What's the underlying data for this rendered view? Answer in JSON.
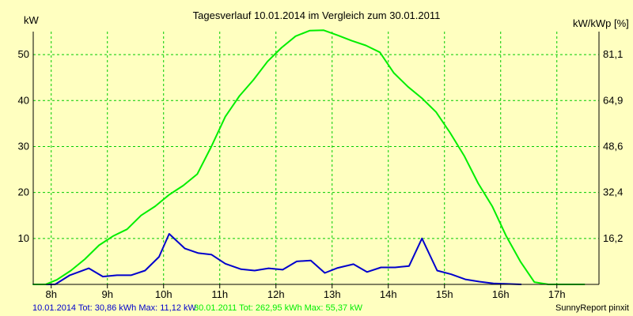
{
  "chart_data": {
    "type": "line",
    "title": "Tagesverlauf 10.01.2014 im Vergleich zum 30.01.2011",
    "ylabel_left": "kW",
    "ylabel_right": "kW/kWp [%]",
    "x_unit": "hour",
    "xlim": [
      7.68,
      17.75
    ],
    "ylim": [
      0,
      55
    ],
    "x_ticks": [
      {
        "value": 8,
        "label": "8h"
      },
      {
        "value": 9,
        "label": "9h"
      },
      {
        "value": 10,
        "label": "10h"
      },
      {
        "value": 11,
        "label": "11h"
      },
      {
        "value": 12,
        "label": "12h"
      },
      {
        "value": 13,
        "label": "13h"
      },
      {
        "value": 14,
        "label": "14h"
      },
      {
        "value": 15,
        "label": "15h"
      },
      {
        "value": 16,
        "label": "16h"
      },
      {
        "value": 17,
        "label": "17h"
      }
    ],
    "y_ticks_left": [
      10,
      20,
      30,
      40,
      50
    ],
    "y_ticks_right": [
      "16,2",
      "32,4",
      "48,6",
      "64,9",
      "81,1"
    ],
    "grid": true,
    "colors": {
      "background": "#ffffc0",
      "grid": "#00cc00",
      "axis": "#000000",
      "series_2014": "#0000cc",
      "series_2011": "#00ee00"
    },
    "legend": [
      {
        "text": "10.01.2014 Tot: 30,86 kWh Max: 11,12 kW",
        "color": "#0000cc"
      },
      {
        "text": "30.01.2011 Tot: 262,95 kWh Max: 55,37 kW",
        "color": "#00ee00"
      }
    ],
    "credit": "SunnyReport pinxit",
    "series": [
      {
        "color": "#0000cc",
        "x": [
          7.67,
          8.07,
          8.33,
          8.67,
          8.92,
          9.17,
          9.42,
          9.67,
          9.92,
          10.1,
          10.38,
          10.62,
          10.85,
          11.1,
          11.38,
          11.62,
          11.87,
          12.12,
          12.37,
          12.62,
          12.87,
          13.1,
          13.38,
          13.62,
          13.87,
          14.12,
          14.37,
          14.6,
          14.87,
          15.12,
          15.37,
          15.62,
          15.87,
          16.12,
          16.37
        ],
        "y": [
          0,
          0,
          2,
          3.5,
          1.7,
          2,
          2,
          3,
          6,
          11,
          7.8,
          6.8,
          6.5,
          4.5,
          3.3,
          3,
          3.5,
          3.2,
          5,
          5.2,
          2.5,
          3.6,
          4.4,
          2.7,
          3.7,
          3.7,
          4,
          10,
          3,
          2.2,
          1.1,
          0.6,
          0.2,
          0.1,
          0
        ]
      },
      {
        "color": "#00ee00",
        "x": [
          7.67,
          7.9,
          8.1,
          8.35,
          8.6,
          8.85,
          9.1,
          9.35,
          9.6,
          9.85,
          10.1,
          10.35,
          10.6,
          10.85,
          11.1,
          11.35,
          11.6,
          11.85,
          12.1,
          12.35,
          12.6,
          12.85,
          13.1,
          13.35,
          13.6,
          13.85,
          14.1,
          14.35,
          14.6,
          14.85,
          15.1,
          15.35,
          15.6,
          15.85,
          16.1,
          16.35,
          16.6,
          16.85,
          17.1,
          17.5
        ],
        "y": [
          0,
          0,
          1,
          3,
          5.5,
          8.5,
          10.5,
          12,
          15,
          17,
          19.5,
          21.5,
          24,
          30,
          36.5,
          41,
          44.5,
          48.5,
          51.5,
          54,
          55.2,
          55.3,
          54.2,
          53,
          52,
          50.5,
          46,
          43,
          40.5,
          37.5,
          33,
          28,
          22,
          17,
          10.5,
          5,
          0.5,
          0,
          0,
          0
        ]
      }
    ]
  }
}
